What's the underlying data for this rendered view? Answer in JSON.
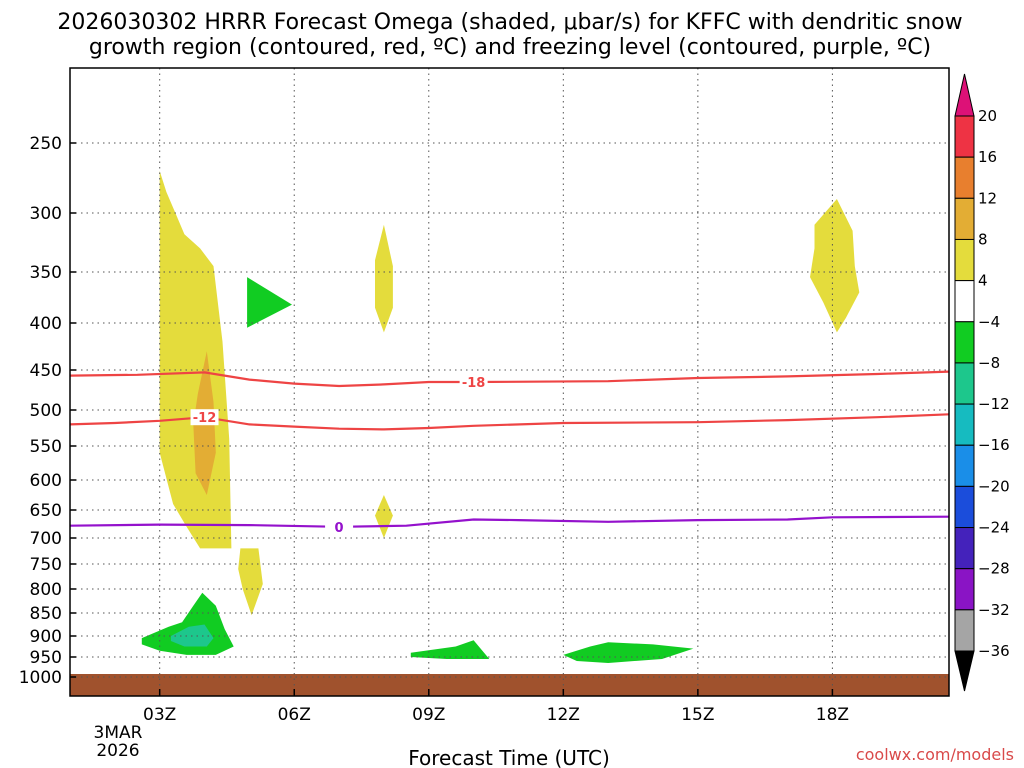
{
  "chart_data": {
    "type": "time-height contour",
    "title_line1": "2026030302 HRRR Forecast Omega (shaded, μbar/s) for KFFC with dendritic snow",
    "title_line2": "growth region (contoured, red, ºC) and freezing level (contoured, purple, ºC)",
    "xlabel": "Forecast Time (UTC)",
    "credit": "coolwx.com/models",
    "x_range_hours": [
      1.0,
      20.6
    ],
    "x_ticks": [
      {
        "hour": 3,
        "label": "03Z"
      },
      {
        "hour": 6,
        "label": "06Z"
      },
      {
        "hour": 9,
        "label": "09Z"
      },
      {
        "hour": 12,
        "label": "12Z"
      },
      {
        "hour": 15,
        "label": "15Z"
      },
      {
        "hour": 18,
        "label": "18Z"
      }
    ],
    "date_label_line1": "3MAR",
    "date_label_line2": "2026",
    "y_ticks_hpa": [
      250,
      300,
      350,
      400,
      450,
      500,
      550,
      600,
      650,
      700,
      750,
      800,
      850,
      900,
      950,
      1000
    ],
    "colorbar": {
      "units": "μbar/s",
      "levels": [
        20,
        16,
        12,
        8,
        4,
        -4,
        -8,
        -12,
        -16,
        -20,
        -24,
        -28,
        -32,
        -36
      ],
      "colors": [
        "#ee3344",
        "#e87f2e",
        "#e3ad34",
        "#e4dc3c",
        "#ffffff",
        "#11cc22",
        "#1dc78c",
        "#16bbc0",
        "#1a8ee8",
        "#1b4ddb",
        "#4422bb",
        "#8a14c5",
        "#a5a5a5"
      ],
      "top_arrow_color": "#dd1177",
      "bottom_arrow_color": "#000000"
    },
    "terrain_color": "#a0522d",
    "contours": [
      {
        "name": "-18C isotherm (dendritic growth top)",
        "color": "#ee4444",
        "label": "-18",
        "label_at_hour": 10.0,
        "points": [
          [
            1.0,
            457
          ],
          [
            2.5,
            456
          ],
          [
            4.0,
            453
          ],
          [
            5.0,
            462
          ],
          [
            6.0,
            467
          ],
          [
            7.0,
            470
          ],
          [
            8.0,
            468
          ],
          [
            9.0,
            465
          ],
          [
            10.0,
            465
          ],
          [
            13.0,
            464
          ],
          [
            15.0,
            460
          ],
          [
            17.0,
            458
          ],
          [
            19.0,
            455
          ],
          [
            20.6,
            452
          ]
        ]
      },
      {
        "name": "-12C isotherm (dendritic growth bottom)",
        "color": "#ee4444",
        "label": "-12",
        "label_at_hour": 4.0,
        "points": [
          [
            1.0,
            520
          ],
          [
            2.0,
            518
          ],
          [
            3.0,
            515
          ],
          [
            4.0,
            510
          ],
          [
            5.0,
            520
          ],
          [
            6.0,
            523
          ],
          [
            7.0,
            526
          ],
          [
            8.0,
            527
          ],
          [
            9.0,
            525
          ],
          [
            10.0,
            522
          ],
          [
            12.0,
            518
          ],
          [
            15.0,
            517
          ],
          [
            17.0,
            514
          ],
          [
            19.0,
            510
          ],
          [
            20.6,
            506
          ]
        ]
      },
      {
        "name": "0C freezing level",
        "color": "#9411cc",
        "label": "0",
        "label_at_hour": 7.0,
        "points": [
          [
            1.0,
            678
          ],
          [
            3.0,
            676
          ],
          [
            5.0,
            677
          ],
          [
            7.0,
            680
          ],
          [
            8.5,
            678
          ],
          [
            10.0,
            667
          ],
          [
            11.0,
            668
          ],
          [
            13.0,
            671
          ],
          [
            15.0,
            668
          ],
          [
            17.0,
            667
          ],
          [
            18.0,
            663
          ],
          [
            20.6,
            662
          ]
        ]
      }
    ],
    "shaded_regions": [
      {
        "name": "upward omega 4-8 main column",
        "value_range": [
          4,
          8
        ],
        "points": [
          [
            3.0,
            270
          ],
          [
            3.15,
            285
          ],
          [
            3.35,
            300
          ],
          [
            3.55,
            318
          ],
          [
            3.9,
            330
          ],
          [
            4.2,
            345
          ],
          [
            4.4,
            420
          ],
          [
            4.55,
            540
          ],
          [
            4.6,
            720
          ],
          [
            3.9,
            720
          ],
          [
            3.6,
            680
          ],
          [
            3.3,
            640
          ],
          [
            3.0,
            560
          ],
          [
            3.0,
            520
          ]
        ]
      },
      {
        "name": "upward omega 4-8 lower lobe",
        "value_range": [
          4,
          8
        ],
        "points": [
          [
            4.8,
            720
          ],
          [
            5.2,
            720
          ],
          [
            5.3,
            790
          ],
          [
            5.05,
            855
          ],
          [
            4.85,
            800
          ],
          [
            4.75,
            760
          ]
        ]
      },
      {
        "name": "upward omega 8-12 core",
        "value_range": [
          8,
          12
        ],
        "points": [
          [
            4.05,
            430
          ],
          [
            4.2,
            490
          ],
          [
            4.25,
            560
          ],
          [
            4.05,
            625
          ],
          [
            3.8,
            590
          ],
          [
            3.75,
            520
          ],
          [
            3.85,
            480
          ]
        ]
      },
      {
        "name": "upward omega 4-8 blob 08Z upper",
        "value_range": [
          4,
          8
        ],
        "points": [
          [
            8.0,
            310
          ],
          [
            8.2,
            345
          ],
          [
            8.2,
            385
          ],
          [
            8.0,
            410
          ],
          [
            7.8,
            385
          ],
          [
            7.8,
            340
          ]
        ]
      },
      {
        "name": "upward omega 4-8 blob 08Z lower",
        "value_range": [
          4,
          8
        ],
        "points": [
          [
            8.0,
            625
          ],
          [
            8.2,
            660
          ],
          [
            8.0,
            700
          ],
          [
            7.8,
            660
          ]
        ]
      },
      {
        "name": "upward omega 4-8 blob 18Z",
        "value_range": [
          4,
          8
        ],
        "points": [
          [
            18.1,
            290
          ],
          [
            18.45,
            315
          ],
          [
            18.5,
            345
          ],
          [
            18.6,
            370
          ],
          [
            18.3,
            395
          ],
          [
            18.1,
            410
          ],
          [
            17.8,
            380
          ],
          [
            17.5,
            355
          ],
          [
            17.6,
            330
          ],
          [
            17.6,
            310
          ]
        ]
      },
      {
        "name": "downward omega -4 to -8 05Z",
        "value_range": [
          -8,
          -4
        ],
        "points": [
          [
            4.95,
            355
          ],
          [
            5.95,
            382
          ],
          [
            4.95,
            405
          ]
        ]
      },
      {
        "name": "downward omega -4 to -8 near surface 04Z",
        "value_range": [
          -8,
          -4
        ],
        "points": [
          [
            2.6,
            905
          ],
          [
            3.2,
            880
          ],
          [
            3.5,
            870
          ],
          [
            3.75,
            835
          ],
          [
            3.95,
            808
          ],
          [
            4.25,
            835
          ],
          [
            4.45,
            885
          ],
          [
            4.65,
            925
          ],
          [
            4.25,
            945
          ],
          [
            3.6,
            945
          ],
          [
            3.0,
            935
          ],
          [
            2.6,
            920
          ]
        ]
      },
      {
        "name": "downward omega -8 to -12 core 04Z",
        "value_range": [
          -12,
          -8
        ],
        "points": [
          [
            3.25,
            900
          ],
          [
            3.65,
            880
          ],
          [
            4.0,
            875
          ],
          [
            4.2,
            905
          ],
          [
            4.05,
            925
          ],
          [
            3.55,
            925
          ],
          [
            3.25,
            912
          ]
        ]
      },
      {
        "name": "downward omega -4 to -8 10Z",
        "value_range": [
          -8,
          -4
        ],
        "points": [
          [
            8.6,
            940
          ],
          [
            9.6,
            925
          ],
          [
            10.0,
            910
          ],
          [
            10.35,
            955
          ],
          [
            9.4,
            955
          ],
          [
            8.6,
            950
          ]
        ]
      },
      {
        "name": "downward omega -4 to -8 13Z",
        "value_range": [
          -8,
          -4
        ],
        "points": [
          [
            12.0,
            945
          ],
          [
            12.6,
            925
          ],
          [
            13.0,
            915
          ],
          [
            14.0,
            920
          ],
          [
            14.9,
            930
          ],
          [
            14.2,
            955
          ],
          [
            13.0,
            965
          ],
          [
            12.3,
            960
          ]
        ]
      }
    ]
  }
}
